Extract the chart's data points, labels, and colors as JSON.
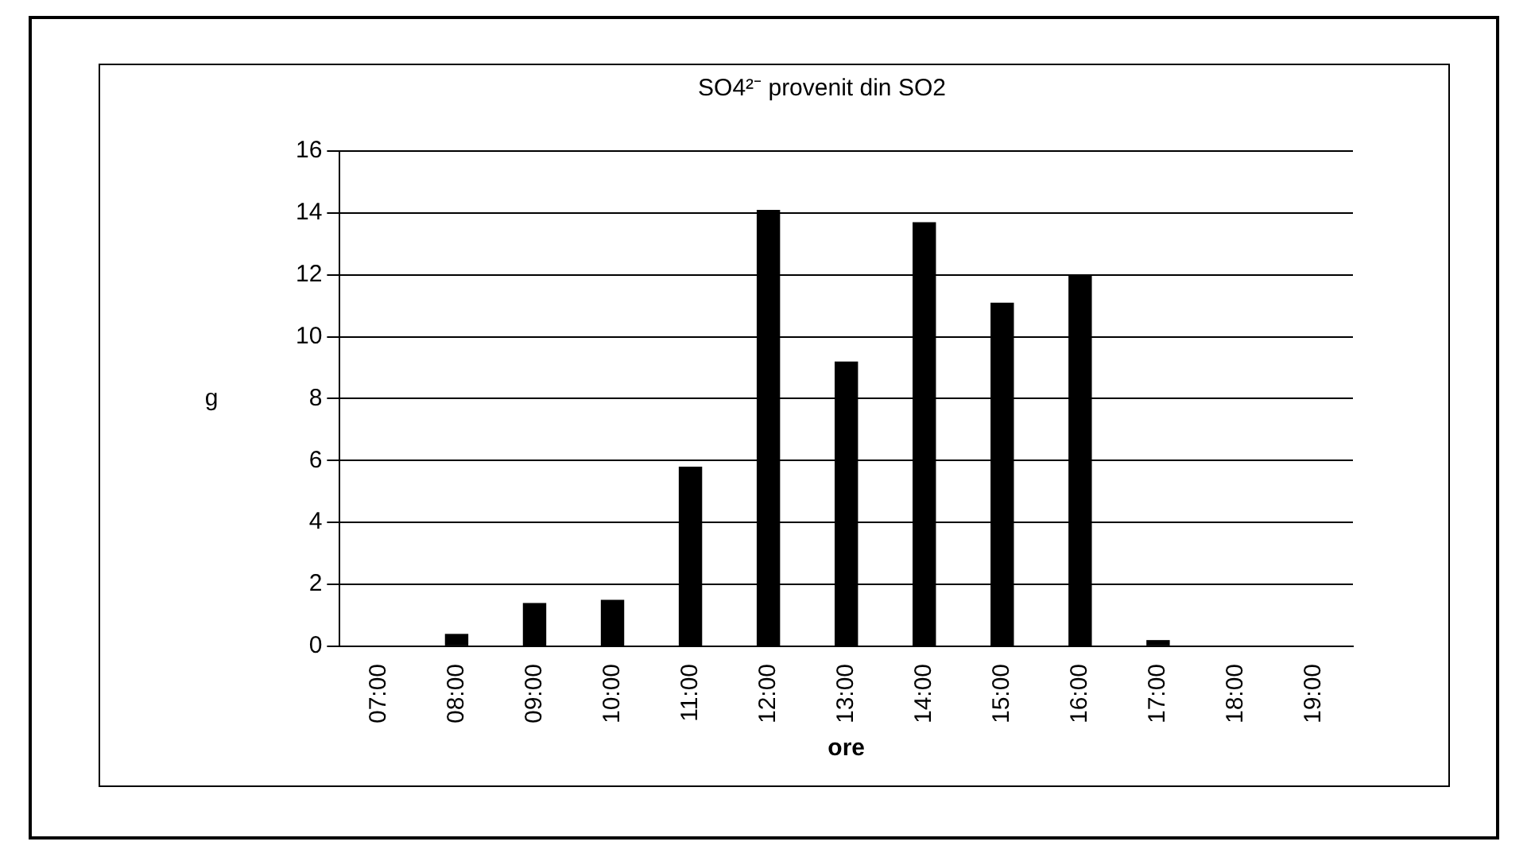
{
  "chart_data": {
    "type": "bar",
    "title": "SO4²⁻ provenit din SO2",
    "xlabel": "ore",
    "ylabel": "g",
    "categories": [
      "07:00",
      "08:00",
      "09:00",
      "10:00",
      "11:00",
      "12:00",
      "13:00",
      "14:00",
      "15:00",
      "16:00",
      "17:00",
      "18:00",
      "19:00"
    ],
    "values": [
      0,
      0.4,
      1.4,
      1.5,
      5.8,
      14.1,
      9.2,
      13.7,
      11.1,
      12,
      0.2,
      0,
      0
    ],
    "color": "#000000",
    "ylim": [
      0,
      16
    ],
    "yticks": [
      0,
      2,
      4,
      6,
      8,
      10,
      12,
      14,
      16
    ],
    "grid": "y"
  }
}
